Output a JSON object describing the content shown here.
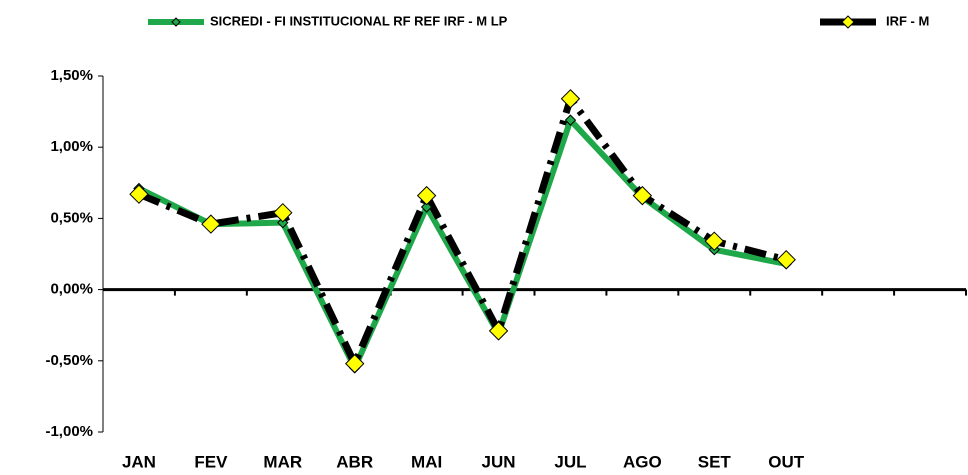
{
  "chart_data": {
    "type": "line",
    "categories": [
      "JAN",
      "FEV",
      "MAR",
      "ABR",
      "MAI",
      "JUN",
      "JUL",
      "AGO",
      "SET",
      "OUT",
      null,
      null
    ],
    "series": [
      {
        "name": "SICREDI - FI INSTITUCIONAL RF REF IRF - M LP",
        "color": "#1fa84a",
        "values": [
          0.71,
          0.46,
          0.47,
          -0.55,
          0.58,
          -0.31,
          1.19,
          0.65,
          0.28,
          0.18,
          null,
          null
        ]
      },
      {
        "name": "IRF - M",
        "color": "#000000",
        "marker_color": "#ffff00",
        "values": [
          0.67,
          0.46,
          0.54,
          -0.52,
          0.66,
          -0.29,
          1.34,
          0.66,
          0.34,
          0.21,
          null,
          null
        ]
      }
    ],
    "ylim": [
      -1,
      1.5
    ],
    "yticks": [
      {
        "value": -1,
        "label": "-1,00%"
      },
      {
        "value": -0.5,
        "label": "-0,50%"
      },
      {
        "value": 0,
        "label": "0,00%"
      },
      {
        "value": 0.5,
        "label": "0,50%"
      },
      {
        "value": 1,
        "label": "1,00%"
      },
      {
        "value": 1.5,
        "label": "1,50%"
      }
    ],
    "grid": false,
    "legend": "top"
  }
}
